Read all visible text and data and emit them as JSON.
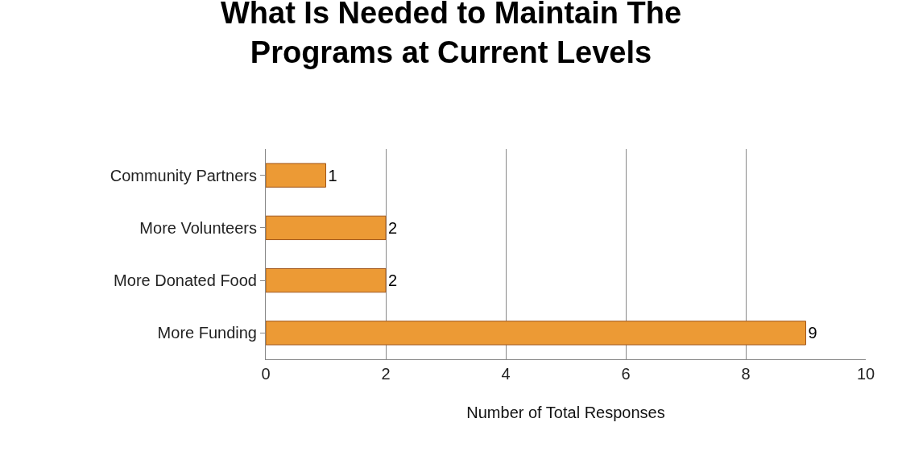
{
  "chart_data": {
    "type": "bar",
    "orientation": "horizontal",
    "title": "What Is Needed to Maintain The Programs at Current Levels",
    "xlabel": "Number of Total Responses",
    "categories": [
      "Community Partners",
      "More Volunteers",
      "More Donated Food",
      "More Funding"
    ],
    "values": [
      1,
      2,
      2,
      9
    ],
    "color": "#ec9a35",
    "xlim": [
      0,
      10
    ],
    "xticks": [
      0,
      2,
      4,
      6,
      8,
      10
    ],
    "grid": "x",
    "data_labels": true
  }
}
